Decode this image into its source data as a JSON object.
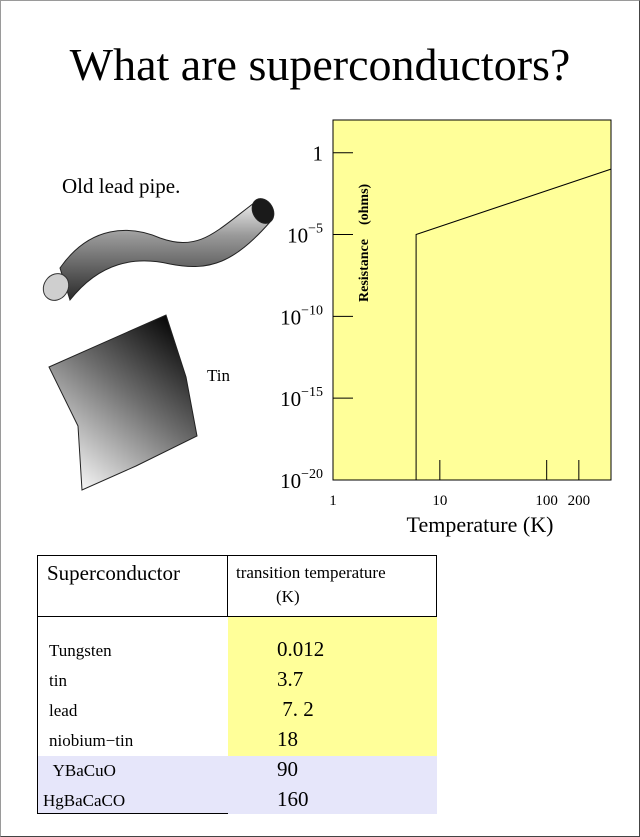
{
  "slide": {
    "title": "What are superconductors?",
    "pipe_label": "Old lead pipe.",
    "tin_label": "Tin"
  },
  "colors": {
    "plot_background": "#ffff99",
    "table_yellow": "#ffff99",
    "table_lavender": "#e6e6fa"
  },
  "chart_data": {
    "type": "line",
    "xscale": "log",
    "yscale": "log",
    "xlabel": "Temperature (K)",
    "ylabel": "Resistance    (ohms)",
    "xlim": [
      1,
      400
    ],
    "ylim": [
      1e-20,
      100
    ],
    "x_ticks": [
      "1",
      "10",
      "100",
      "200"
    ],
    "y_ticks": [
      {
        "base": "1",
        "exp": ""
      },
      {
        "base": "10",
        "exp": "−5"
      },
      {
        "base": "10",
        "exp": "−10"
      },
      {
        "base": "10",
        "exp": "−15"
      },
      {
        "base": "10",
        "exp": "−20"
      }
    ],
    "series": [
      {
        "x": [
          6,
          6,
          400
        ],
        "y": [
          1e-20,
          1e-05,
          0.1
        ]
      }
    ]
  },
  "table": {
    "header": {
      "col1": "Superconductor",
      "col2_line1": "transition temperature",
      "col2_line2": "(K)"
    },
    "rows": [
      {
        "material": "Tungsten",
        "temp": "0.012"
      },
      {
        "material": "tin",
        "temp": "3.7"
      },
      {
        "material": "lead",
        "temp": " 7. 2"
      },
      {
        "material": "niobium−tin",
        "temp": "18"
      },
      {
        "material": " YBaCuO",
        "temp": "90"
      },
      {
        "material": "HgBaCaCO",
        "temp": "160"
      }
    ]
  }
}
